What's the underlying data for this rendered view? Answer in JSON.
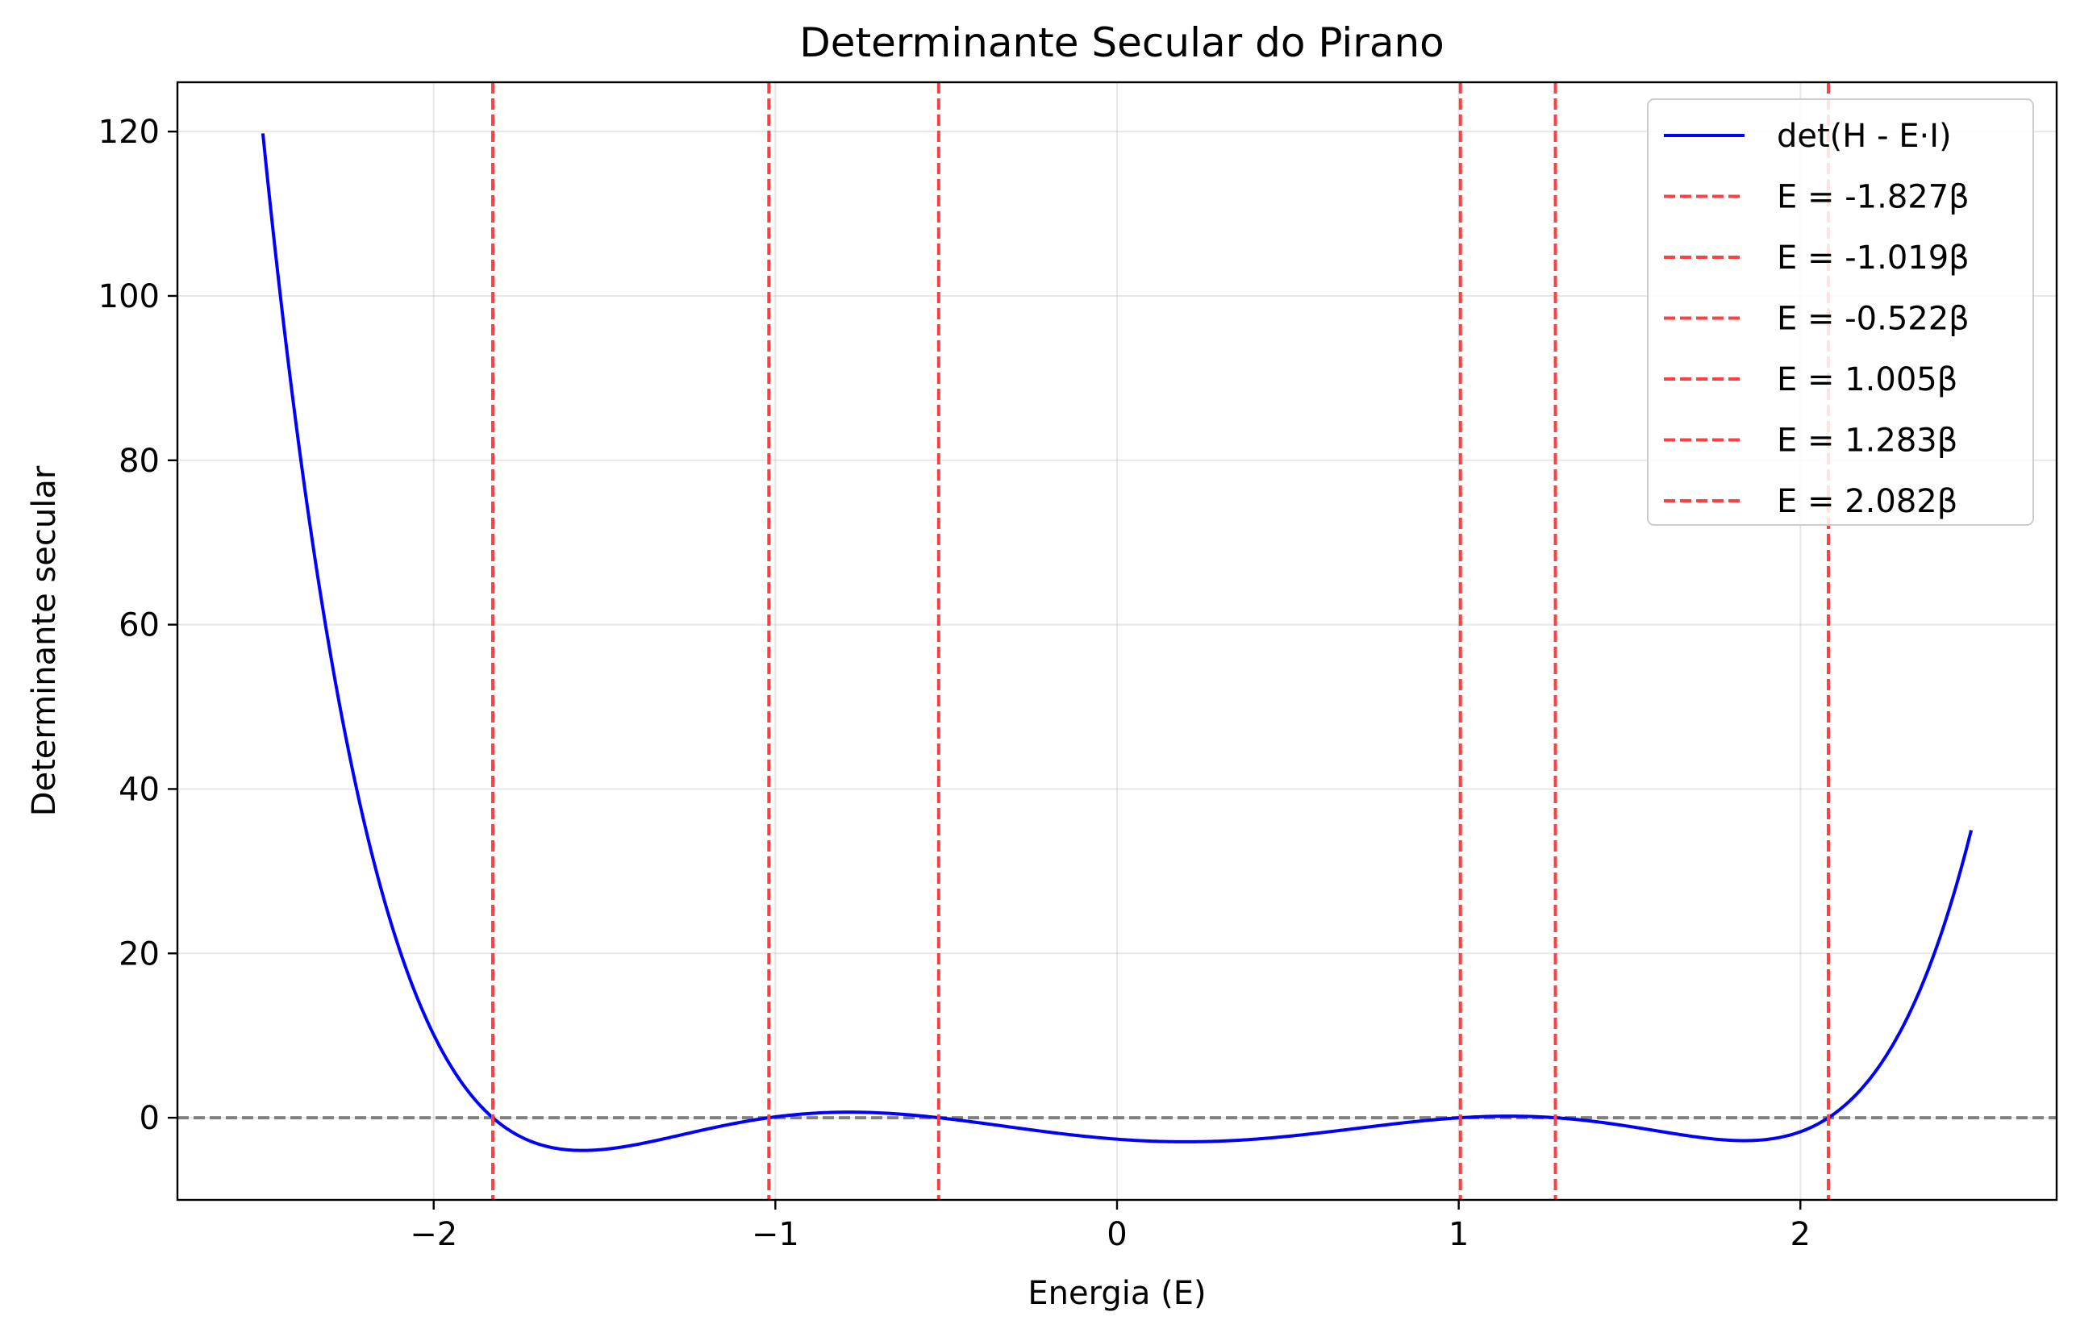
{
  "chart_data": {
    "type": "line",
    "title": "Determinante Secular do Pirano",
    "xlabel": "Energia (E)",
    "ylabel": "Determinante secular",
    "xlim": [
      -2.75,
      2.75
    ],
    "ylim": [
      -10,
      126
    ],
    "grid": true,
    "legend_position": "top-right",
    "x_ticks": [
      -2,
      -1,
      0,
      1,
      2
    ],
    "x_tick_labels": [
      "−2",
      "−1",
      "0",
      "1",
      "2"
    ],
    "y_ticks": [
      0,
      20,
      40,
      60,
      80,
      100,
      120
    ],
    "y_tick_labels": [
      "0",
      "20",
      "40",
      "60",
      "80",
      "100",
      "120"
    ],
    "series": [
      {
        "name": "det(H - E·I)",
        "color": "#0000ff",
        "style": "solid",
        "x_range": [
          -2.5,
          2.5
        ],
        "formula": "polynomial with roots [-1.827, -1.019, -0.522, 1.005, 1.283, 2.082], leading coefficient 1",
        "description": "det = (E+1.827)(E+1.019)(E+0.522)(E-1.005)(E-1.283)(E-2.082)"
      }
    ],
    "roots": [
      -1.827,
      -1.019,
      -0.522,
      1.005,
      1.283,
      2.082
    ],
    "root_labels": [
      "E = -1.827β",
      "E = -1.019β",
      "E = -0.522β",
      "E = 1.005β",
      "E = 1.283β",
      "E = 2.082β"
    ],
    "root_line_color": "#ff4040",
    "zero_line": {
      "y": 0,
      "color": "#808080",
      "style": "dashed"
    }
  }
}
